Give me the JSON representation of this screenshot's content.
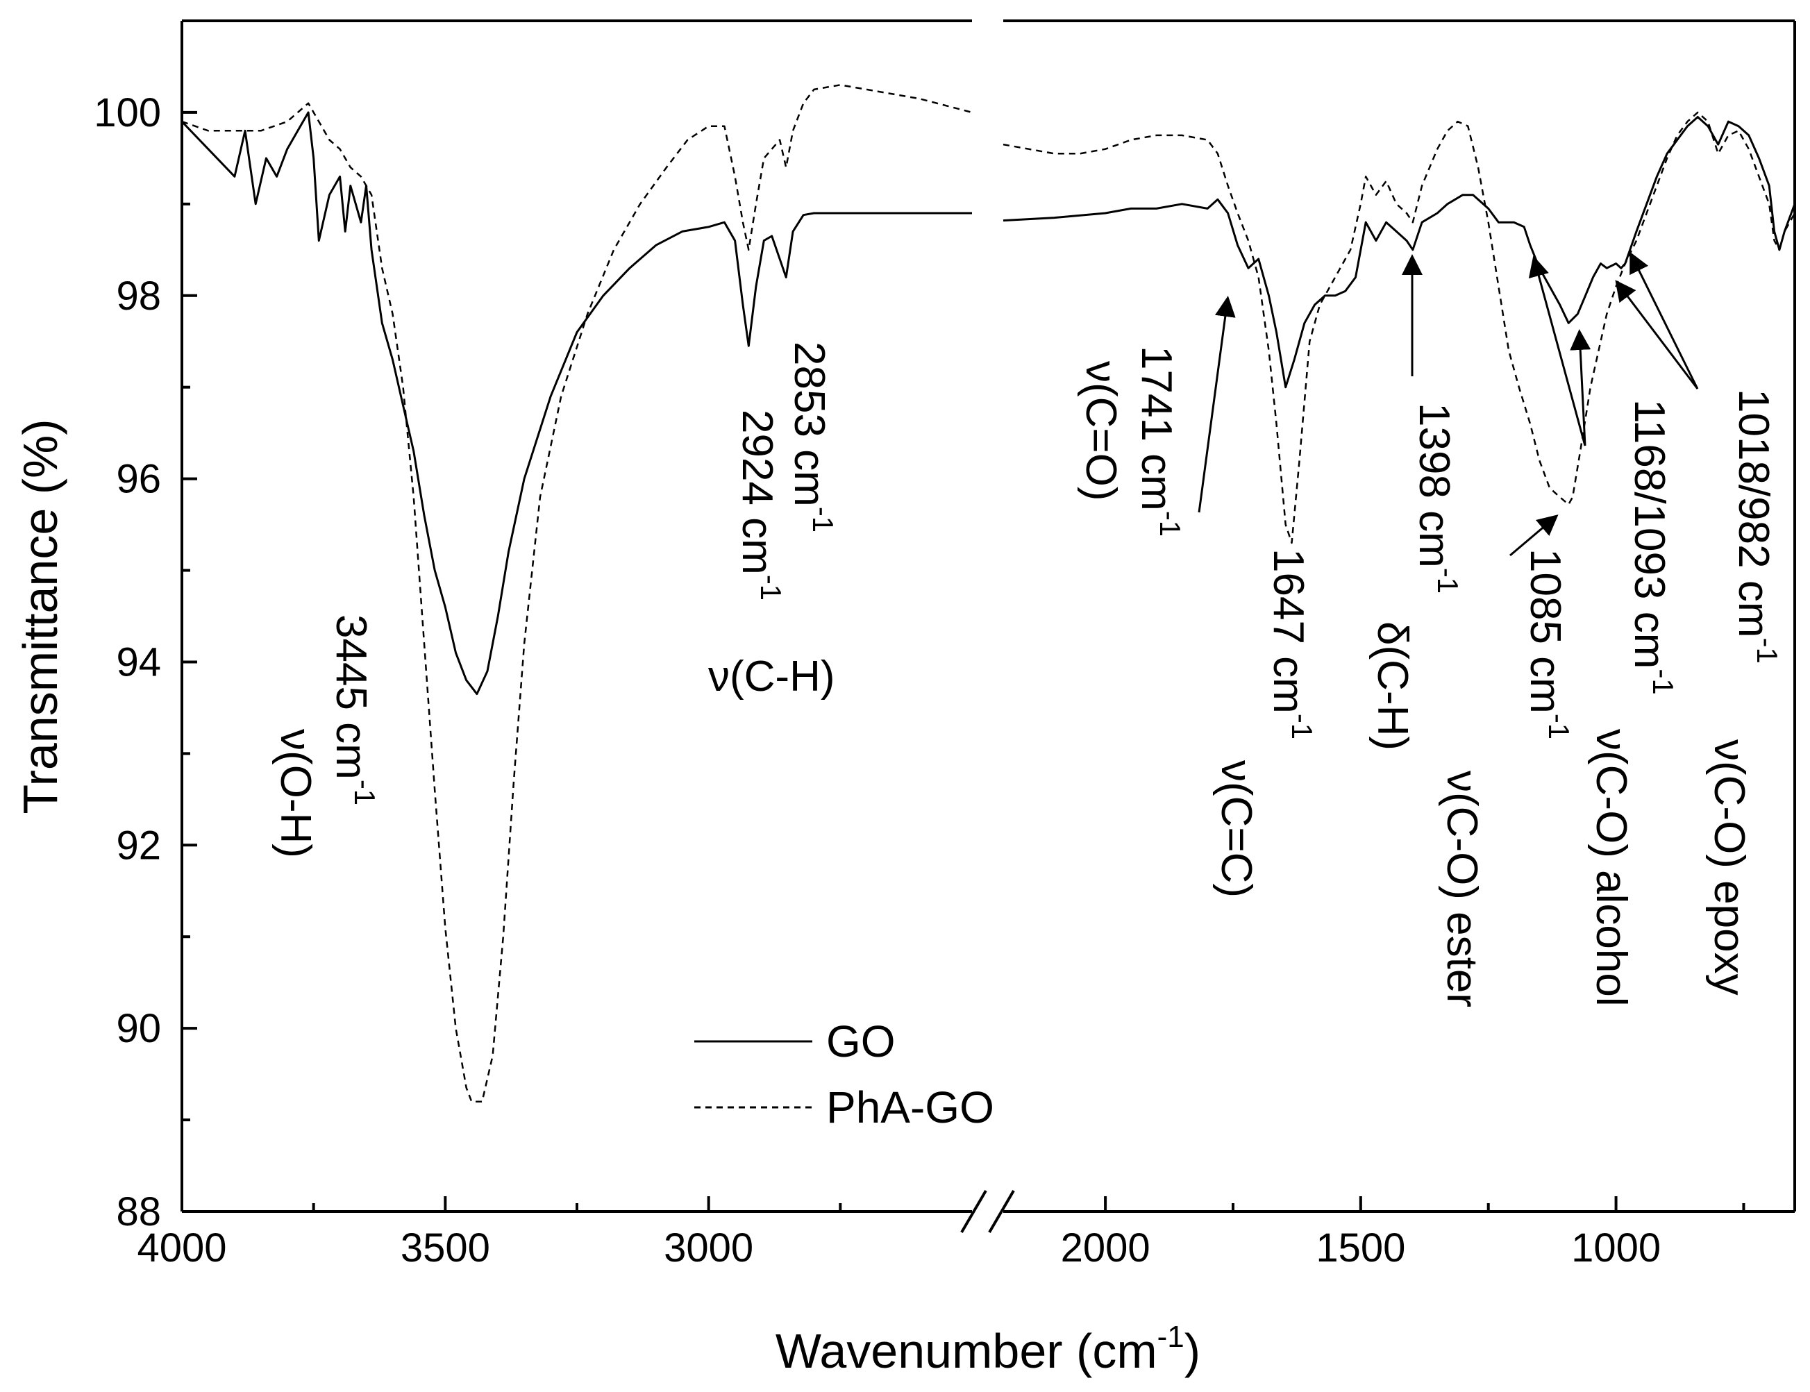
{
  "chart_data": {
    "type": "line",
    "title": "",
    "xlabel": "Wavenumber (cm",
    "xlabel_sup": "-1",
    "xlabel_end": ")",
    "ylabel": "Transmittance (%)",
    "ylim": [
      88,
      101
    ],
    "y_ticks": [
      "88",
      "90",
      "92",
      "94",
      "96",
      "98",
      "100"
    ],
    "x_ticks": [
      "4000",
      "3500",
      "3000",
      "2000",
      "1500",
      "1000"
    ],
    "x_axis_break": true,
    "x_segments": [
      {
        "from": 4000,
        "to": 2500
      },
      {
        "from": 2200,
        "to": 650
      }
    ],
    "legend": {
      "position": "bottom-center",
      "entries": [
        "GO",
        "PhA-GO"
      ]
    },
    "series": [
      {
        "name": "GO",
        "style": "solid",
        "segments": [
          [
            [
              4000,
              99.9
            ],
            [
              3950,
              99.6
            ],
            [
              3900,
              99.3
            ],
            [
              3880,
              99.8
            ],
            [
              3860,
              99.0
            ],
            [
              3840,
              99.5
            ],
            [
              3820,
              99.3
            ],
            [
              3800,
              99.6
            ],
            [
              3780,
              99.8
            ],
            [
              3760,
              100.0
            ],
            [
              3750,
              99.5
            ],
            [
              3740,
              98.6
            ],
            [
              3720,
              99.1
            ],
            [
              3700,
              99.3
            ],
            [
              3690,
              98.7
            ],
            [
              3680,
              99.2
            ],
            [
              3660,
              98.8
            ],
            [
              3650,
              99.2
            ],
            [
              3640,
              98.5
            ],
            [
              3620,
              97.7
            ],
            [
              3600,
              97.3
            ],
            [
              3580,
              96.8
            ],
            [
              3560,
              96.3
            ],
            [
              3540,
              95.6
            ],
            [
              3520,
              95.0
            ],
            [
              3500,
              94.6
            ],
            [
              3480,
              94.1
            ],
            [
              3460,
              93.8
            ],
            [
              3440,
              93.65
            ],
            [
              3420,
              93.9
            ],
            [
              3400,
              94.5
            ],
            [
              3380,
              95.2
            ],
            [
              3350,
              96.0
            ],
            [
              3300,
              96.9
            ],
            [
              3250,
              97.6
            ],
            [
              3200,
              98.0
            ],
            [
              3150,
              98.3
            ],
            [
              3100,
              98.55
            ],
            [
              3050,
              98.7
            ],
            [
              3000,
              98.75
            ],
            [
              2970,
              98.8
            ],
            [
              2950,
              98.6
            ],
            [
              2935,
              97.9
            ],
            [
              2924,
              97.45
            ],
            [
              2910,
              98.1
            ],
            [
              2895,
              98.6
            ],
            [
              2880,
              98.65
            ],
            [
              2865,
              98.4
            ],
            [
              2853,
              98.2
            ],
            [
              2840,
              98.7
            ],
            [
              2820,
              98.88
            ],
            [
              2800,
              98.9
            ],
            [
              2700,
              98.9
            ],
            [
              2600,
              98.9
            ],
            [
              2500,
              98.9
            ]
          ],
          [
            [
              2200,
              98.82
            ],
            [
              2100,
              98.85
            ],
            [
              2000,
              98.9
            ],
            [
              1950,
              98.95
            ],
            [
              1900,
              98.95
            ],
            [
              1850,
              99.0
            ],
            [
              1800,
              98.95
            ],
            [
              1780,
              99.05
            ],
            [
              1760,
              98.9
            ],
            [
              1741,
              98.55
            ],
            [
              1720,
              98.3
            ],
            [
              1700,
              98.4
            ],
            [
              1680,
              98.0
            ],
            [
              1665,
              97.6
            ],
            [
              1647,
              97.0
            ],
            [
              1630,
              97.3
            ],
            [
              1610,
              97.7
            ],
            [
              1590,
              97.9
            ],
            [
              1570,
              98.0
            ],
            [
              1550,
              98.0
            ],
            [
              1530,
              98.05
            ],
            [
              1510,
              98.2
            ],
            [
              1490,
              98.8
            ],
            [
              1470,
              98.6
            ],
            [
              1450,
              98.8
            ],
            [
              1430,
              98.7
            ],
            [
              1410,
              98.6
            ],
            [
              1398,
              98.5
            ],
            [
              1380,
              98.8
            ],
            [
              1350,
              98.9
            ],
            [
              1330,
              99.0
            ],
            [
              1300,
              99.1
            ],
            [
              1280,
              99.1
            ],
            [
              1250,
              98.95
            ],
            [
              1230,
              98.8
            ],
            [
              1200,
              98.8
            ],
            [
              1180,
              98.75
            ],
            [
              1168,
              98.55
            ],
            [
              1150,
              98.3
            ],
            [
              1130,
              98.1
            ],
            [
              1110,
              97.9
            ],
            [
              1093,
              97.7
            ],
            [
              1075,
              97.8
            ],
            [
              1060,
              98.0
            ],
            [
              1045,
              98.2
            ],
            [
              1030,
              98.35
            ],
            [
              1018,
              98.3
            ],
            [
              1000,
              98.35
            ],
            [
              990,
              98.3
            ],
            [
              982,
              98.35
            ],
            [
              960,
              98.7
            ],
            [
              940,
              99.0
            ],
            [
              920,
              99.3
            ],
            [
              900,
              99.55
            ],
            [
              880,
              99.7
            ],
            [
              860,
              99.85
            ],
            [
              840,
              99.95
            ],
            [
              820,
              99.85
            ],
            [
              800,
              99.65
            ],
            [
              780,
              99.9
            ],
            [
              760,
              99.85
            ],
            [
              740,
              99.75
            ],
            [
              720,
              99.5
            ],
            [
              700,
              99.2
            ],
            [
              690,
              98.7
            ],
            [
              680,
              98.5
            ],
            [
              670,
              98.7
            ],
            [
              650,
              99.0
            ]
          ]
        ]
      },
      {
        "name": "PhA-GO",
        "style": "dashed",
        "segments": [
          [
            [
              4000,
              99.9
            ],
            [
              3950,
              99.8
            ],
            [
              3900,
              99.8
            ],
            [
              3850,
              99.8
            ],
            [
              3800,
              99.9
            ],
            [
              3780,
              100.0
            ],
            [
              3760,
              100.1
            ],
            [
              3740,
              99.9
            ],
            [
              3720,
              99.7
            ],
            [
              3700,
              99.6
            ],
            [
              3680,
              99.4
            ],
            [
              3660,
              99.3
            ],
            [
              3640,
              99.1
            ],
            [
              3620,
              98.3
            ],
            [
              3600,
              97.8
            ],
            [
              3580,
              97.0
            ],
            [
              3560,
              95.8
            ],
            [
              3540,
              94.2
            ],
            [
              3520,
              92.6
            ],
            [
              3500,
              91.1
            ],
            [
              3480,
              90.0
            ],
            [
              3460,
              89.35
            ],
            [
              3450,
              89.2
            ],
            [
              3430,
              89.2
            ],
            [
              3410,
              89.7
            ],
            [
              3390,
              91.0
            ],
            [
              3370,
              92.7
            ],
            [
              3350,
              94.2
            ],
            [
              3320,
              95.8
            ],
            [
              3280,
              96.9
            ],
            [
              3230,
              97.8
            ],
            [
              3180,
              98.5
            ],
            [
              3130,
              99.0
            ],
            [
              3080,
              99.4
            ],
            [
              3040,
              99.7
            ],
            [
              3000,
              99.85
            ],
            [
              2970,
              99.85
            ],
            [
              2950,
              99.3
            ],
            [
              2935,
              98.8
            ],
            [
              2924,
              98.5
            ],
            [
              2910,
              99.0
            ],
            [
              2895,
              99.5
            ],
            [
              2880,
              99.6
            ],
            [
              2865,
              99.7
            ],
            [
              2853,
              99.4
            ],
            [
              2840,
              99.8
            ],
            [
              2820,
              100.1
            ],
            [
              2800,
              100.25
            ],
            [
              2750,
              100.3
            ],
            [
              2700,
              100.25
            ],
            [
              2600,
              100.15
            ],
            [
              2500,
              100.0
            ]
          ],
          [
            [
              2200,
              99.65
            ],
            [
              2150,
              99.6
            ],
            [
              2100,
              99.55
            ],
            [
              2050,
              99.55
            ],
            [
              2000,
              99.6
            ],
            [
              1950,
              99.7
            ],
            [
              1900,
              99.75
            ],
            [
              1850,
              99.75
            ],
            [
              1800,
              99.7
            ],
            [
              1780,
              99.55
            ],
            [
              1760,
              99.2
            ],
            [
              1741,
              98.9
            ],
            [
              1720,
              98.6
            ],
            [
              1700,
              98.2
            ],
            [
              1680,
              97.4
            ],
            [
              1665,
              96.6
            ],
            [
              1647,
              95.5
            ],
            [
              1635,
              95.3
            ],
            [
              1620,
              96.2
            ],
            [
              1600,
              97.5
            ],
            [
              1580,
              97.9
            ],
            [
              1560,
              98.1
            ],
            [
              1540,
              98.3
            ],
            [
              1520,
              98.5
            ],
            [
              1500,
              99.0
            ],
            [
              1490,
              99.3
            ],
            [
              1470,
              99.1
            ],
            [
              1450,
              99.25
            ],
            [
              1430,
              99.0
            ],
            [
              1410,
              98.9
            ],
            [
              1398,
              98.8
            ],
            [
              1380,
              99.2
            ],
            [
              1350,
              99.6
            ],
            [
              1330,
              99.8
            ],
            [
              1310,
              99.9
            ],
            [
              1290,
              99.85
            ],
            [
              1270,
              99.4
            ],
            [
              1250,
              98.8
            ],
            [
              1230,
              98.1
            ],
            [
              1210,
              97.4
            ],
            [
              1190,
              97.0
            ],
            [
              1168,
              96.6
            ],
            [
              1150,
              96.2
            ],
            [
              1130,
              95.9
            ],
            [
              1110,
              95.8
            ],
            [
              1093,
              95.72
            ],
            [
              1085,
              95.8
            ],
            [
              1070,
              96.3
            ],
            [
              1050,
              97.0
            ],
            [
              1030,
              97.5
            ],
            [
              1018,
              97.8
            ],
            [
              1000,
              98.1
            ],
            [
              982,
              98.35
            ],
            [
              960,
              98.6
            ],
            [
              940,
              98.9
            ],
            [
              920,
              99.2
            ],
            [
              900,
              99.5
            ],
            [
              880,
              99.75
            ],
            [
              860,
              99.9
            ],
            [
              840,
              100.0
            ],
            [
              820,
              99.9
            ],
            [
              800,
              99.55
            ],
            [
              780,
              99.75
            ],
            [
              760,
              99.8
            ],
            [
              740,
              99.6
            ],
            [
              720,
              99.3
            ],
            [
              700,
              99.0
            ],
            [
              690,
              98.6
            ],
            [
              680,
              98.5
            ],
            [
              670,
              98.7
            ],
            [
              650,
              98.9
            ]
          ]
        ]
      }
    ],
    "annotations": [
      {
        "id": "oh",
        "lines": [
          "3445 cm",
          "ν(O-H)"
        ],
        "sup": "-1"
      },
      {
        "id": "ch",
        "lines": [
          "2924 cm",
          "ν(C-H)"
        ],
        "sup": "-1"
      },
      {
        "id": "ch2",
        "lines": [
          "2853 cm"
        ],
        "sup": "-1"
      },
      {
        "id": "co1741",
        "lines": [
          "1741 cm",
          "ν(C=O)"
        ],
        "sup": "-1"
      },
      {
        "id": "cc1647",
        "lines": [
          "1647 cm",
          "ν(C=C)"
        ],
        "sup": "-1"
      },
      {
        "id": "ch1398",
        "lines": [
          "1398 cm",
          "δ(C-H)"
        ],
        "sup": "-1"
      },
      {
        "id": "ester",
        "lines": [
          "1085 cm",
          "ν(C-O) ester"
        ],
        "sup": "-1"
      },
      {
        "id": "alcohol",
        "lines": [
          "1168/1093 cm",
          "ν(C-O) alcohol"
        ],
        "sup": "-1"
      },
      {
        "id": "epoxy",
        "lines": [
          "1018/982 cm",
          "ν(C-O) epoxy"
        ],
        "sup": "-1"
      }
    ]
  }
}
